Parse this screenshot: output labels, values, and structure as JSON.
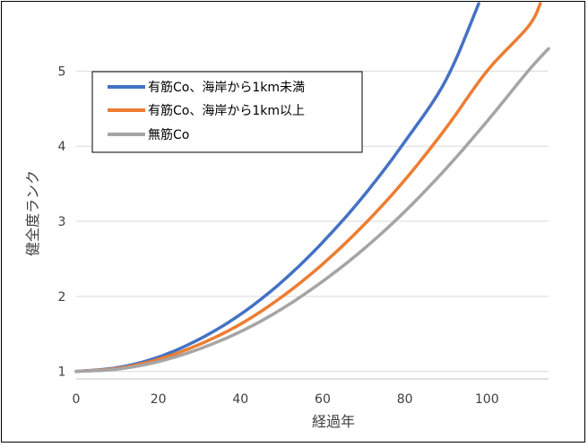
{
  "chart_data": {
    "type": "line",
    "title": "",
    "xlabel": "経過年",
    "ylabel": "健全度ランク",
    "xlim": [
      0,
      115
    ],
    "ylim": [
      0.9,
      5.9
    ],
    "x_ticks": [
      "0",
      "20",
      "40",
      "60",
      "80",
      "100"
    ],
    "y_ticks": [
      "1",
      "2",
      "3",
      "4",
      "5"
    ],
    "grid": "horizontal",
    "legend_position": "top-left",
    "series": [
      {
        "name": "有筋Co、海岸から1km未満",
        "color": "#4472C4",
        "x": [
          0,
          10,
          20,
          30,
          40,
          50,
          60,
          70,
          80,
          90,
          98
        ],
        "y": [
          1.0,
          1.05,
          1.19,
          1.43,
          1.76,
          2.19,
          2.72,
          3.34,
          4.06,
          4.88,
          5.9
        ]
      },
      {
        "name": "有筋Co、海岸から1km以上",
        "color": "#ED7D31",
        "x": [
          0,
          10,
          20,
          30,
          40,
          50,
          60,
          70,
          80,
          90,
          100,
          110,
          113
        ],
        "y": [
          1.0,
          1.04,
          1.16,
          1.36,
          1.63,
          1.99,
          2.43,
          2.95,
          3.55,
          4.24,
          5.0,
          5.59,
          5.9
        ]
      },
      {
        "name": "無筋Co",
        "color": "#A5A5A5",
        "x": [
          0,
          10,
          20,
          30,
          40,
          50,
          60,
          70,
          80,
          90,
          100,
          110,
          115
        ],
        "y": [
          1.0,
          1.03,
          1.13,
          1.3,
          1.53,
          1.83,
          2.2,
          2.63,
          3.13,
          3.7,
          4.33,
          5.0,
          5.3
        ]
      }
    ]
  },
  "colors": {
    "gridline": "#D9D9D9",
    "frame": "#000000",
    "axis_line": "#BFBFBF"
  }
}
